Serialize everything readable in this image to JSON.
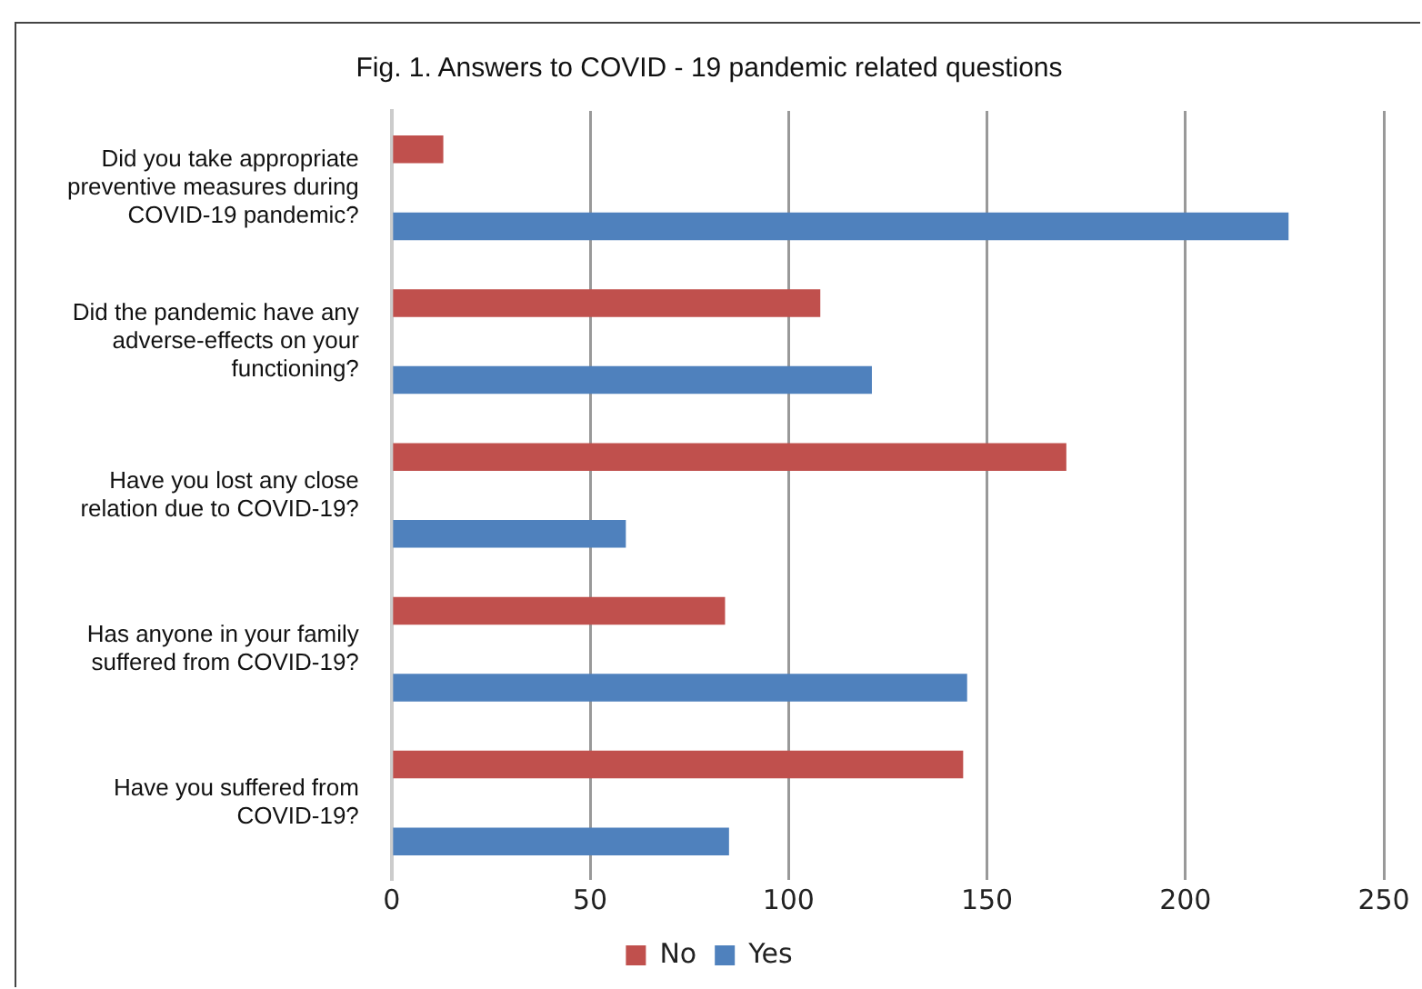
{
  "chart_data": {
    "type": "bar",
    "orientation": "horizontal",
    "title": "Fig. 1. Answers to COVID - 19 pandemic related questions",
    "categories": [
      "Did you take appropriate preventive measures during COVID-19 pandemic?",
      "Did the pandemic have any adverse-effects on your functioning?",
      "Have you lost any close relation due to COVID-19?",
      "Has anyone in your family suffered from COVID-19?",
      "Have you suffered from COVID-19?"
    ],
    "series": [
      {
        "name": "No",
        "color": "#c0504d",
        "values": [
          13,
          108,
          170,
          84,
          144
        ]
      },
      {
        "name": "Yes",
        "color": "#4f81bd",
        "values": [
          226,
          121,
          59,
          145,
          85
        ]
      }
    ],
    "xlim": [
      0,
      250
    ],
    "xticks": [
      0,
      50,
      100,
      150,
      200,
      250
    ],
    "grid": "x",
    "legend": "bottom"
  }
}
